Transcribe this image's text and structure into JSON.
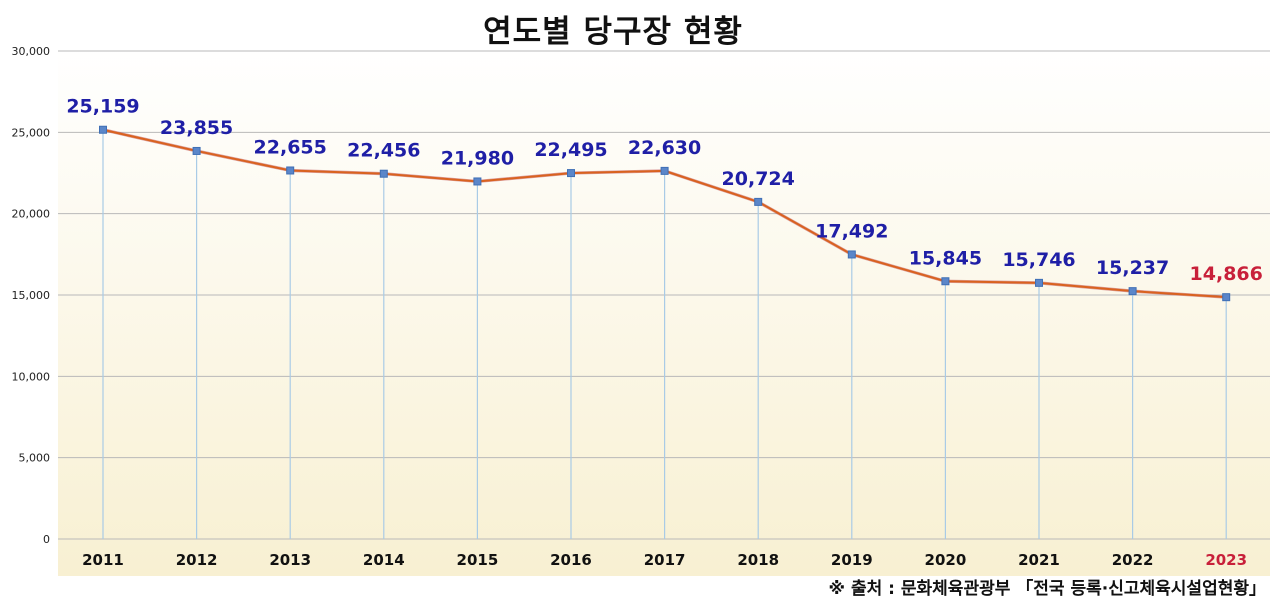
{
  "chart_data": {
    "type": "line",
    "title": "연도별 당구장 현황",
    "categories": [
      "2011",
      "2012",
      "2013",
      "2014",
      "2015",
      "2016",
      "2017",
      "2018",
      "2019",
      "2020",
      "2021",
      "2022",
      "2023"
    ],
    "series": [
      {
        "values": [
          25159,
          23855,
          22655,
          22456,
          21980,
          22495,
          22630,
          20724,
          17492,
          15845,
          15746,
          15237,
          14866
        ]
      }
    ],
    "data_labels": [
      "25,159",
      "23,855",
      "22,655",
      "22,456",
      "21,980",
      "22,495",
      "22,630",
      "20,724",
      "17,492",
      "15,845",
      "15,746",
      "15,237",
      "14,866"
    ],
    "ylim": [
      0,
      30000
    ],
    "yticks": [
      0,
      5000,
      10000,
      15000,
      20000,
      25000,
      30000
    ],
    "ytick_labels": [
      "0",
      "5,000",
      "10,000",
      "15,000",
      "20,000",
      "25,000",
      "30,000"
    ],
    "highlight_category": "2023",
    "grid": true,
    "colors": {
      "line": "#d9621f",
      "marker": "#5b86c9",
      "label": "#1f1fa6",
      "highlight": "#c8203a",
      "drop_line": "#a9cbe6",
      "grid": "#b9b9b9",
      "bg_top": "#ffffff",
      "bg_bottom": "#f8f0d2"
    }
  },
  "source_note": "※ 출처 : 문화체육관광부 「전국 등록·신고체육시설업현황」"
}
